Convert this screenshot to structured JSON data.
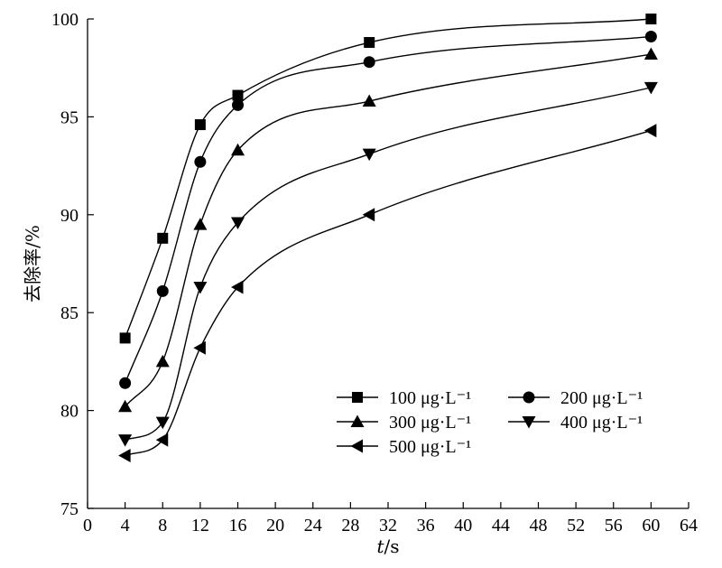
{
  "chart_data": {
    "type": "scatter",
    "xlabel": "t/s",
    "ylabel": "去除率/%",
    "xlim": [
      0,
      64
    ],
    "ylim": [
      75,
      100
    ],
    "xticks": [
      0,
      4,
      8,
      12,
      16,
      20,
      24,
      28,
      32,
      36,
      40,
      44,
      48,
      52,
      56,
      60,
      64
    ],
    "yticks": [
      75,
      80,
      85,
      90,
      95,
      100
    ],
    "grid": false,
    "legend_position": "bottom-right",
    "fit_curves": true,
    "series": [
      {
        "name": "100 μg·L⁻¹",
        "marker": "square",
        "x": [
          4,
          8,
          12,
          16,
          30,
          60
        ],
        "y": [
          83.7,
          88.8,
          94.6,
          96.1,
          98.8,
          100.0
        ]
      },
      {
        "name": "200 μg·L⁻¹",
        "marker": "circle",
        "x": [
          4,
          8,
          12,
          16,
          30,
          60
        ],
        "y": [
          81.4,
          86.1,
          92.7,
          95.6,
          97.8,
          99.1
        ]
      },
      {
        "name": "300 μg·L⁻¹",
        "marker": "triangle-up",
        "x": [
          4,
          8,
          12,
          16,
          30,
          60
        ],
        "y": [
          80.2,
          82.5,
          89.5,
          93.3,
          95.8,
          98.2
        ]
      },
      {
        "name": "400 μg·L⁻¹",
        "marker": "triangle-down",
        "x": [
          4,
          8,
          12,
          16,
          30,
          60
        ],
        "y": [
          78.5,
          79.4,
          86.3,
          89.6,
          93.1,
          96.5
        ]
      },
      {
        "name": "500 μg·L⁻¹",
        "marker": "triangle-left",
        "x": [
          4,
          8,
          12,
          16,
          30,
          60
        ],
        "y": [
          77.7,
          78.5,
          83.2,
          86.3,
          90.0,
          94.3
        ]
      }
    ]
  }
}
